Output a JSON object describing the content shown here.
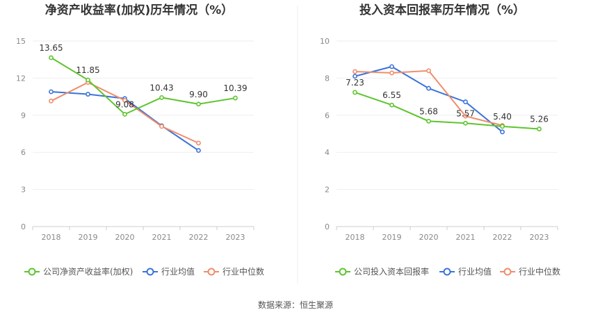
{
  "source": "数据来源：恒生聚源",
  "chart_data": [
    {
      "type": "line",
      "title": "净资产收益率(加权)历年情况（%）",
      "categories": [
        "2018",
        "2019",
        "2020",
        "2021",
        "2022",
        "2023"
      ],
      "ylim": [
        0,
        15
      ],
      "yticks": [
        0,
        3,
        6,
        9,
        12,
        15
      ],
      "grid": true,
      "legend": "bottom",
      "series": [
        {
          "name": "公司净资产收益率(加权)",
          "color": "#5dc52d",
          "values": [
            13.65,
            11.85,
            9.08,
            10.43,
            9.9,
            10.39
          ],
          "labels": [
            "13.65",
            "11.85",
            "9.08",
            "10.43",
            "9.90",
            "10.39"
          ]
        },
        {
          "name": "行业均值",
          "color": "#3a73d9",
          "values": [
            10.9,
            10.7,
            10.35,
            8.15,
            6.15,
            null
          ]
        },
        {
          "name": "行业中位数",
          "color": "#f08c6a",
          "values": [
            10.15,
            11.65,
            10.2,
            8.1,
            6.75,
            null
          ]
        }
      ]
    },
    {
      "type": "line",
      "title": "投入资本回报率历年情况（%）",
      "categories": [
        "2018",
        "2019",
        "2020",
        "2021",
        "2022",
        "2023"
      ],
      "ylim": [
        0,
        10
      ],
      "yticks": [
        0,
        2,
        4,
        6,
        8,
        10
      ],
      "grid": true,
      "legend": "bottom",
      "series": [
        {
          "name": "公司投入资本回报率",
          "color": "#5dc52d",
          "values": [
            7.23,
            6.55,
            5.68,
            5.57,
            5.4,
            5.26
          ],
          "labels": [
            "7.23",
            "6.55",
            "5.68",
            "5.57",
            "5.40",
            "5.26"
          ]
        },
        {
          "name": "行业均值",
          "color": "#3a73d9",
          "values": [
            8.1,
            8.62,
            7.45,
            6.72,
            5.1,
            null
          ]
        },
        {
          "name": "行业中位数",
          "color": "#f08c6a",
          "values": [
            8.35,
            8.28,
            8.4,
            5.95,
            5.45,
            null
          ]
        }
      ]
    }
  ]
}
